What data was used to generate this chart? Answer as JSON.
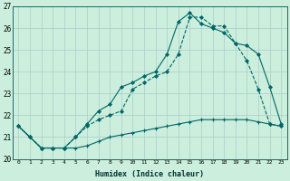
{
  "xlabel": "Humidex (Indice chaleur)",
  "ylabel": "",
  "bg_color": "#cceedd",
  "grid_color": "#aacccc",
  "line_color": "#006666",
  "xlim": [
    -0.5,
    23.5
  ],
  "ylim": [
    20,
    27
  ],
  "yticks": [
    20,
    21,
    22,
    23,
    24,
    25,
    26,
    27
  ],
  "xticks": [
    0,
    1,
    2,
    3,
    4,
    5,
    6,
    7,
    8,
    9,
    10,
    11,
    12,
    13,
    14,
    15,
    16,
    17,
    18,
    19,
    20,
    21,
    22,
    23
  ],
  "line1_x": [
    0,
    1,
    2,
    3,
    4,
    5,
    6,
    7,
    8,
    9,
    10,
    11,
    12,
    13,
    14,
    15,
    16,
    17,
    18,
    19,
    20,
    21,
    22,
    23
  ],
  "line1_y": [
    21.5,
    21.0,
    20.5,
    20.5,
    20.5,
    20.5,
    20.6,
    20.8,
    21.0,
    21.1,
    21.2,
    21.3,
    21.4,
    21.5,
    21.6,
    21.7,
    21.8,
    21.8,
    21.8,
    21.8,
    21.8,
    21.7,
    21.6,
    21.5
  ],
  "line2_x": [
    0,
    1,
    2,
    3,
    4,
    5,
    6,
    7,
    8,
    9,
    10,
    11,
    12,
    13,
    14,
    15,
    16,
    17,
    18,
    19,
    20,
    21,
    22,
    23
  ],
  "line2_y": [
    21.5,
    21.0,
    20.5,
    20.5,
    20.5,
    21.0,
    21.5,
    21.8,
    22.0,
    22.2,
    23.2,
    23.5,
    23.8,
    24.0,
    24.8,
    26.5,
    26.5,
    26.1,
    26.1,
    25.3,
    24.5,
    23.2,
    21.6,
    21.5
  ],
  "line3_x": [
    0,
    1,
    2,
    3,
    4,
    5,
    6,
    7,
    8,
    9,
    10,
    11,
    12,
    13,
    14,
    15,
    16,
    17,
    18,
    19,
    20,
    21,
    22,
    23
  ],
  "line3_y": [
    21.5,
    21.0,
    20.5,
    20.5,
    20.5,
    21.0,
    21.6,
    22.2,
    22.5,
    23.3,
    23.5,
    23.8,
    24.0,
    24.8,
    26.3,
    26.7,
    26.2,
    26.0,
    25.8,
    25.3,
    25.2,
    24.8,
    23.3,
    21.6
  ]
}
